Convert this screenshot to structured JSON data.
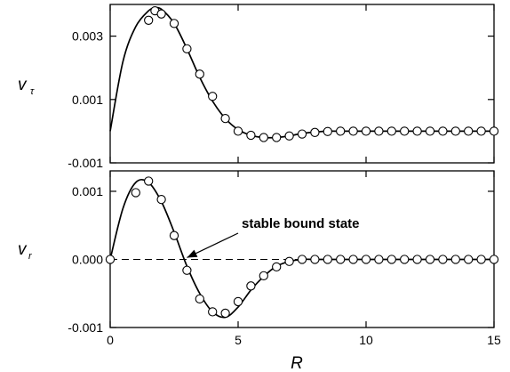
{
  "chart_data": [
    {
      "type": "line",
      "panel": "top",
      "ylabel": "v",
      "ylabel_subscript": "τ",
      "xlim": [
        0,
        15
      ],
      "ylim": [
        -0.001,
        0.004
      ],
      "y_tick_labels": [
        "0.003",
        "0.001",
        "-0.001"
      ],
      "y_tick_values": [
        0.003,
        0.001,
        -0.001
      ],
      "grid": false,
      "series": [
        {
          "style": "solid-line",
          "x": [
            0,
            0.5,
            1.0,
            1.5,
            1.75,
            2.0,
            2.5,
            3.0,
            3.5,
            4.0,
            4.5,
            5.0,
            5.5,
            6.0,
            6.5,
            7.0,
            7.5,
            8.0,
            8.5,
            9.0,
            10.0,
            11.0,
            12.0,
            13.0,
            14.0,
            15.0
          ],
          "y": [
            0.0,
            0.0022,
            0.0033,
            0.0038,
            0.00388,
            0.00385,
            0.0034,
            0.0026,
            0.0017,
            0.00095,
            0.0004,
            5e-05,
            -0.00013,
            -0.0002,
            -0.0002,
            -0.00015,
            -7e-05,
            -3e-05,
            0.0,
            0.0,
            0.0,
            0.0,
            0.0,
            0.0,
            0.0,
            0.0
          ]
        },
        {
          "style": "open-circle",
          "x": [
            1.5,
            1.75,
            2.0,
            2.5,
            3.0,
            3.5,
            4.0,
            4.5,
            5.0,
            5.5,
            6.0,
            6.5,
            7.0,
            7.5,
            8.0,
            8.5,
            9.0,
            9.5,
            10.0,
            10.5,
            11.0,
            11.5,
            12.0,
            12.5,
            13.0,
            13.5,
            14.0,
            14.5,
            15.0
          ],
          "y": [
            0.0035,
            0.0038,
            0.0037,
            0.0034,
            0.0026,
            0.0018,
            0.0011,
            0.0004,
            0.0,
            -0.00013,
            -0.0002,
            -0.0002,
            -0.00015,
            -9e-05,
            -4e-05,
            -1e-05,
            0.0,
            0.0,
            0.0,
            0.0,
            0.0,
            0.0,
            0.0,
            0.0,
            0.0,
            0.0,
            0.0,
            0.0,
            0.0
          ]
        }
      ]
    },
    {
      "type": "line",
      "panel": "bottom",
      "ylabel": "v",
      "ylabel_subscript": "r",
      "xlabel": "R",
      "xlim": [
        0,
        15
      ],
      "ylim": [
        -0.001,
        0.0013
      ],
      "x_tick_labels": [
        "0",
        "5",
        "10",
        "15"
      ],
      "x_tick_values": [
        0,
        5,
        10,
        15
      ],
      "y_tick_labels": [
        "0.001",
        "0.000",
        "-0.001"
      ],
      "y_tick_values": [
        0.001,
        0.0,
        -0.001
      ],
      "grid": false,
      "annotation": "stable bound state",
      "annotation_arrow_target": [
        2.9,
        0.0
      ],
      "series": [
        {
          "style": "solid-line",
          "x": [
            0,
            0.5,
            1.0,
            1.5,
            2.0,
            2.5,
            3.0,
            3.5,
            4.0,
            4.5,
            5.0,
            5.5,
            6.0,
            6.5,
            7.0,
            7.5,
            8.0,
            9.0,
            10.0,
            11.0,
            12.0,
            13.0,
            14.0,
            15.0
          ],
          "y": [
            0.0,
            0.00075,
            0.00113,
            0.00113,
            0.00085,
            0.0004,
            -0.0001,
            -0.0005,
            -0.00077,
            -0.00085,
            -0.0007,
            -0.00045,
            -0.00025,
            -0.0001,
            -3e-05,
            0.0,
            0.0,
            0.0,
            0.0,
            0.0,
            0.0,
            0.0,
            0.0,
            0.0
          ]
        },
        {
          "style": "open-circle",
          "x": [
            0,
            1.0,
            1.5,
            2.0,
            2.5,
            3.0,
            3.5,
            4.0,
            4.5,
            5.0,
            5.5,
            6.0,
            6.5,
            7.0,
            7.5,
            8.0,
            8.5,
            9.0,
            9.5,
            10.0,
            10.5,
            11.0,
            11.5,
            12.0,
            12.5,
            13.0,
            13.5,
            14.0,
            14.5,
            15.0
          ],
          "y": [
            0.0,
            0.00098,
            0.00115,
            0.00088,
            0.00035,
            -0.00016,
            -0.00058,
            -0.00077,
            -0.00079,
            -0.00062,
            -0.00039,
            -0.00024,
            -0.00011,
            -3e-05,
            0.0,
            0.0,
            0.0,
            0.0,
            0.0,
            0.0,
            0.0,
            0.0,
            0.0,
            0.0,
            0.0,
            0.0,
            0.0,
            0.0,
            0.0,
            0.0
          ]
        }
      ]
    }
  ]
}
